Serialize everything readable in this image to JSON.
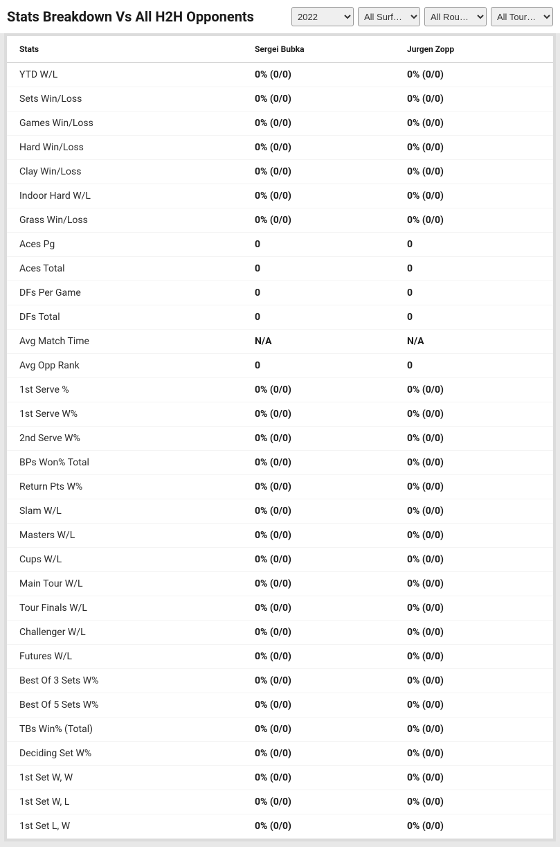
{
  "header": {
    "title": "Stats Breakdown Vs All H2H Opponents"
  },
  "filters": {
    "year": {
      "selected": "2022"
    },
    "surface": {
      "selected": "All Surf…"
    },
    "round": {
      "selected": "All Rou…"
    },
    "tour": {
      "selected": "All Tour…"
    }
  },
  "table": {
    "columns": {
      "stats": "Stats",
      "player1": "Sergei Bubka",
      "player2": "Jurgen Zopp"
    },
    "rows": [
      {
        "stat": "YTD W/L",
        "p1": "0% (0/0)",
        "p2": "0% (0/0)"
      },
      {
        "stat": "Sets Win/Loss",
        "p1": "0% (0/0)",
        "p2": "0% (0/0)"
      },
      {
        "stat": "Games Win/Loss",
        "p1": "0% (0/0)",
        "p2": "0% (0/0)"
      },
      {
        "stat": "Hard Win/Loss",
        "p1": "0% (0/0)",
        "p2": "0% (0/0)"
      },
      {
        "stat": "Clay Win/Loss",
        "p1": "0% (0/0)",
        "p2": "0% (0/0)"
      },
      {
        "stat": "Indoor Hard W/L",
        "p1": "0% (0/0)",
        "p2": "0% (0/0)"
      },
      {
        "stat": "Grass Win/Loss",
        "p1": "0% (0/0)",
        "p2": "0% (0/0)"
      },
      {
        "stat": "Aces Pg",
        "p1": "0",
        "p2": "0"
      },
      {
        "stat": "Aces Total",
        "p1": "0",
        "p2": "0"
      },
      {
        "stat": "DFs Per Game",
        "p1": "0",
        "p2": "0"
      },
      {
        "stat": "DFs Total",
        "p1": "0",
        "p2": "0"
      },
      {
        "stat": "Avg Match Time",
        "p1": "N/A",
        "p2": "N/A"
      },
      {
        "stat": "Avg Opp Rank",
        "p1": "0",
        "p2": "0"
      },
      {
        "stat": "1st Serve %",
        "p1": "0% (0/0)",
        "p2": "0% (0/0)"
      },
      {
        "stat": "1st Serve W%",
        "p1": "0% (0/0)",
        "p2": "0% (0/0)"
      },
      {
        "stat": "2nd Serve W%",
        "p1": "0% (0/0)",
        "p2": "0% (0/0)"
      },
      {
        "stat": "BPs Won% Total",
        "p1": "0% (0/0)",
        "p2": "0% (0/0)"
      },
      {
        "stat": "Return Pts W%",
        "p1": "0% (0/0)",
        "p2": "0% (0/0)"
      },
      {
        "stat": "Slam W/L",
        "p1": "0% (0/0)",
        "p2": "0% (0/0)"
      },
      {
        "stat": "Masters W/L",
        "p1": "0% (0/0)",
        "p2": "0% (0/0)"
      },
      {
        "stat": "Cups W/L",
        "p1": "0% (0/0)",
        "p2": "0% (0/0)"
      },
      {
        "stat": "Main Tour W/L",
        "p1": "0% (0/0)",
        "p2": "0% (0/0)"
      },
      {
        "stat": "Tour Finals W/L",
        "p1": "0% (0/0)",
        "p2": "0% (0/0)"
      },
      {
        "stat": "Challenger W/L",
        "p1": "0% (0/0)",
        "p2": "0% (0/0)"
      },
      {
        "stat": "Futures W/L",
        "p1": "0% (0/0)",
        "p2": "0% (0/0)"
      },
      {
        "stat": "Best Of 3 Sets W%",
        "p1": "0% (0/0)",
        "p2": "0% (0/0)"
      },
      {
        "stat": "Best Of 5 Sets W%",
        "p1": "0% (0/0)",
        "p2": "0% (0/0)"
      },
      {
        "stat": "TBs Win% (Total)",
        "p1": "0% (0/0)",
        "p2": "0% (0/0)"
      },
      {
        "stat": "Deciding Set W%",
        "p1": "0% (0/0)",
        "p2": "0% (0/0)"
      },
      {
        "stat": "1st Set W, W",
        "p1": "0% (0/0)",
        "p2": "0% (0/0)"
      },
      {
        "stat": "1st Set W, L",
        "p1": "0% (0/0)",
        "p2": "0% (0/0)"
      },
      {
        "stat": "1st Set L, W",
        "p1": "0% (0/0)",
        "p2": "0% (0/0)"
      }
    ]
  },
  "styling": {
    "background_color": "#e8e8e8",
    "table_background": "#ffffff",
    "table_border_color": "#d0d0d0",
    "row_border_color": "#f4f4f4",
    "header_font_size": 12,
    "cell_font_size": 14,
    "title_font_size": 20,
    "value_font_weight": 700,
    "stat_font_weight": 400,
    "text_color": "#1a1a1a",
    "select_background": "#efefef",
    "select_border": "#999999"
  }
}
